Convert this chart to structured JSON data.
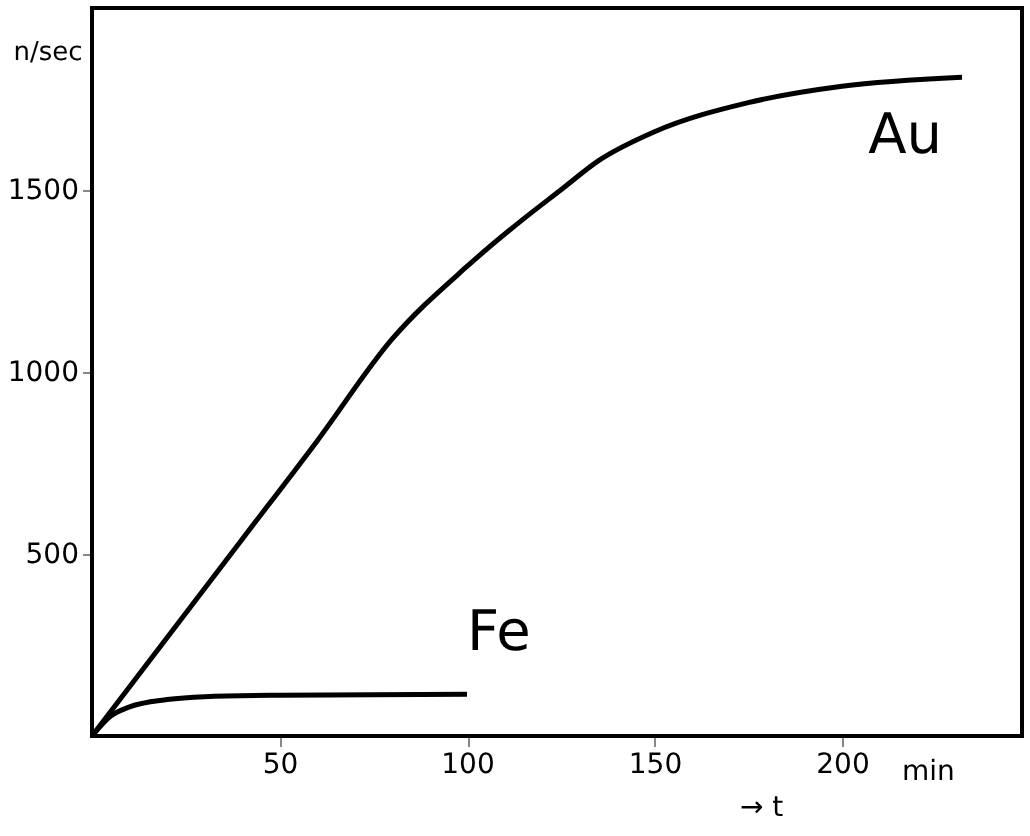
{
  "chart_data": {
    "type": "line",
    "xlabel": "→ t",
    "ylabel": "n/sec",
    "annotations": [
      "min"
    ],
    "xlim": [
      0,
      248
    ],
    "xticks": [
      50,
      100,
      150,
      200
    ],
    "ylim": [
      0,
      2000
    ],
    "yticks": [
      500,
      1000,
      1500
    ],
    "grid": false,
    "marker": "none",
    "line_style": "solid",
    "series": [
      {
        "name": "Au",
        "color": "#000000",
        "x": [
          0,
          20,
          40,
          60,
          80,
          100,
          115,
          125,
          135,
          150,
          175,
          200,
          232
        ],
        "values": [
          0,
          270,
          540,
          810,
          1090,
          1290,
          1420,
          1500,
          1580,
          1660,
          1740,
          1785,
          1810
        ]
      },
      {
        "name": "Fe",
        "color": "#000000",
        "x": [
          0,
          5,
          10,
          20,
          30,
          50,
          100
        ],
        "values": [
          0,
          55,
          80,
          100,
          108,
          112,
          115
        ]
      }
    ]
  }
}
